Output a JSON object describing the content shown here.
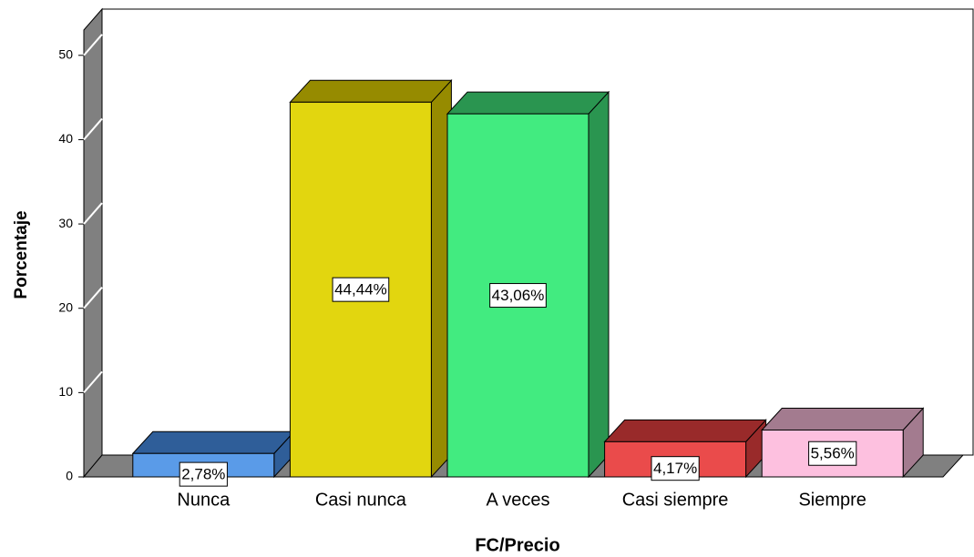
{
  "chart_data": {
    "type": "bar3d",
    "x_label": "FC/Precio",
    "y_label": "Porcentaje",
    "categories": [
      "Nunca",
      "Casi nunca",
      "A veces",
      "Casi siempre",
      "Siempre"
    ],
    "values": [
      2.78,
      44.44,
      43.06,
      4.17,
      5.56
    ],
    "value_labels": [
      "2,78%",
      "44,44%",
      "43,06%",
      "4,17%",
      "5,56%"
    ],
    "colors": [
      "#5a9be8",
      "#e2d60f",
      "#42eb80",
      "#ea4b4b",
      "#fdc0df"
    ],
    "shade_colors": [
      "#2f5e99",
      "#968b00",
      "#2a9550",
      "#992a2a",
      "#a37b8f"
    ],
    "ylim": [
      0,
      53
    ],
    "yticks": [
      0,
      10,
      20,
      30,
      40,
      50
    ],
    "grid": false
  }
}
